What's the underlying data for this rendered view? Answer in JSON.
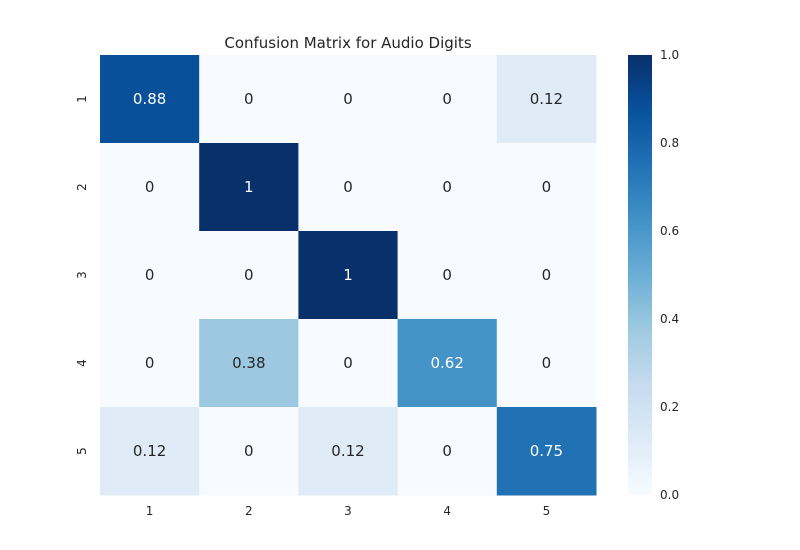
{
  "chart_data": {
    "type": "heatmap",
    "title": "Confusion Matrix for Audio Digits",
    "xlabel": "",
    "ylabel": "",
    "x_categories": [
      "1",
      "2",
      "3",
      "4",
      "5"
    ],
    "y_categories": [
      "1",
      "2",
      "3",
      "4",
      "5"
    ],
    "values": [
      [
        0.88,
        0,
        0,
        0,
        0.12
      ],
      [
        0,
        1,
        0,
        0,
        0
      ],
      [
        0,
        0,
        1,
        0,
        0
      ],
      [
        0,
        0.38,
        0,
        0.62,
        0
      ],
      [
        0.12,
        0,
        0.12,
        0,
        0.75
      ]
    ],
    "annotations": [
      [
        "0.88",
        "0",
        "0",
        "0",
        "0.12"
      ],
      [
        "0",
        "1",
        "0",
        "0",
        "0"
      ],
      [
        "0",
        "0",
        "1",
        "0",
        "0"
      ],
      [
        "0",
        "0.38",
        "0",
        "0.62",
        "0"
      ],
      [
        "0.12",
        "0",
        "0.12",
        "0",
        "0.75"
      ]
    ],
    "colormap": "Blues",
    "colormap_stops": [
      "#f7fbff",
      "#deebf7",
      "#c6dbef",
      "#9ecae1",
      "#6baed6",
      "#4292c6",
      "#2171b5",
      "#08519c",
      "#08306b"
    ],
    "vmin": 0,
    "vmax": 1,
    "colorbar": {
      "ticks": [
        0,
        0.2,
        0.4,
        0.6,
        0.8,
        1
      ],
      "tick_labels": [
        "0.0",
        "0.2",
        "0.4",
        "0.6",
        "0.8",
        "1.0"
      ]
    },
    "grid": false,
    "annotation_text_dark": "#262626",
    "annotation_text_light": "#ffffff"
  }
}
